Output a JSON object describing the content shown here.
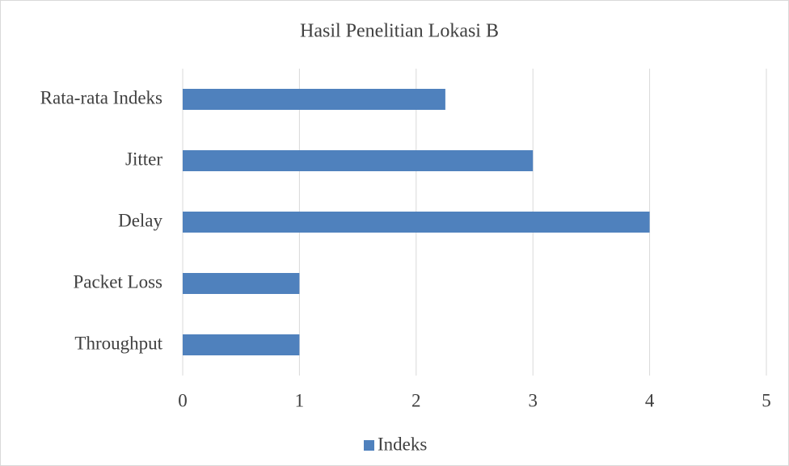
{
  "chart_data": {
    "type": "bar",
    "orientation": "horizontal",
    "title": "Hasil Penelitian Lokasi B",
    "categories": [
      "Rata-rata Indeks",
      "Jitter",
      "Delay",
      "Packet Loss",
      "Throughput"
    ],
    "series": [
      {
        "name": "Indeks",
        "color": "#4f81bd",
        "values": [
          2.25,
          3,
          4,
          1,
          1
        ]
      }
    ],
    "xlim": [
      0,
      5
    ],
    "xticks": [
      0,
      1,
      2,
      3,
      4,
      5
    ],
    "grid": true,
    "legend": "bottom"
  }
}
